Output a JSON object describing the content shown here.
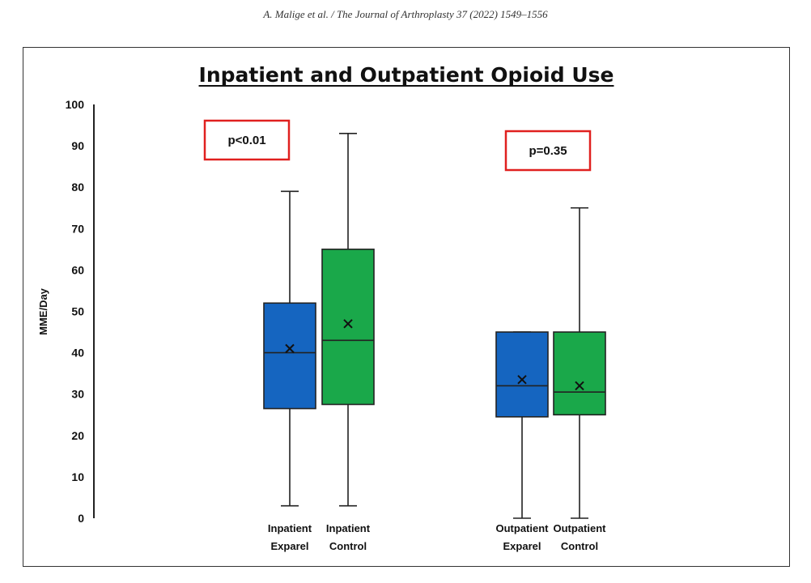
{
  "header": {
    "citation": "A. Malige et al. / The Journal of Arthroplasty 37 (2022) 1549–1556"
  },
  "chart_data": {
    "type": "box",
    "title": "Inpatient and Outpatient Opioid Use",
    "xlabel": "",
    "ylabel": "MME/Day",
    "ylim": [
      0,
      100
    ],
    "yticks": [
      0,
      10,
      20,
      30,
      40,
      50,
      60,
      70,
      80,
      90,
      100
    ],
    "grid": false,
    "legend": "none",
    "groups": [
      {
        "pvalue": "p<0.01",
        "boxes": [
          {
            "label_line1": "Inpatient",
            "label_line2": "Exparel",
            "color": "#1565c0",
            "min": 3,
            "q1": 26.5,
            "median": 40,
            "q3": 52,
            "max": 79,
            "mean": 41
          },
          {
            "label_line1": "Inpatient",
            "label_line2": "Control",
            "color": "#1aa84a",
            "min": 3,
            "q1": 27.5,
            "median": 43,
            "q3": 65,
            "max": 93,
            "mean": 47
          }
        ]
      },
      {
        "pvalue": "p=0.35",
        "boxes": [
          {
            "label_line1": "Outpatient",
            "label_line2": "Exparel",
            "color": "#1565c0",
            "min": 0,
            "q1": 24.5,
            "median": 32,
            "q3": 45,
            "max": 45,
            "mean": 33.5
          },
          {
            "label_line1": "Outpatient",
            "label_line2": "Control",
            "color": "#1aa84a",
            "min": 0,
            "q1": 25,
            "median": 30.5,
            "q3": 45,
            "max": 75,
            "mean": 32
          }
        ]
      }
    ]
  }
}
